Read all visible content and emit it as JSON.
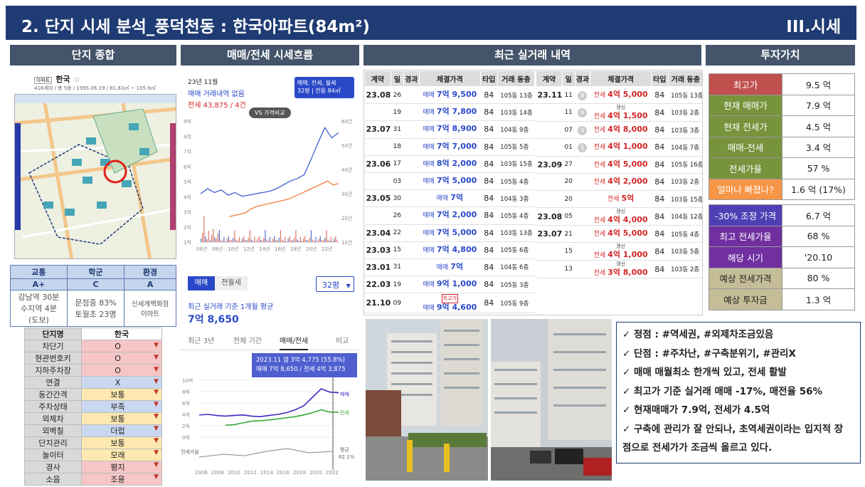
{
  "header": {
    "title": "2. 단지 시세 분석_풍덕천동 : 한국아파트(84m²)",
    "section": "III.시세"
  },
  "panels": {
    "complex": "단지 종합",
    "trend": "매매/전세 시세흐름",
    "deals": "최근 실거래 내역",
    "invest": "투자가치"
  },
  "map": {
    "name": "한국",
    "info": "416세대 / 총 5동 / 1995.06.19 / 81.63㎡ ~ 105.9㎡",
    "tag": "아파트"
  },
  "grades": {
    "headers": [
      "교통",
      "학군",
      "환경"
    ],
    "values": [
      "A+",
      "C",
      "A"
    ],
    "details": [
      "강남역 30분\n수지역 4분\n(도보)",
      "문정중 83%\n토월초 23명",
      "신세계백화점\n이마트"
    ]
  },
  "attributes": {
    "col1": "단지명",
    "col2": "한국",
    "rows": [
      {
        "label": "차단기",
        "value": "O",
        "tone": "red"
      },
      {
        "label": "현관번호키",
        "value": "O",
        "tone": "red"
      },
      {
        "label": "지하주차장",
        "value": "O",
        "tone": "red"
      },
      {
        "label": "연결",
        "value": "X",
        "tone": "blue"
      },
      {
        "label": "동간간격",
        "value": "보통",
        "tone": "yel"
      },
      {
        "label": "주차상태",
        "value": "부족",
        "tone": "blue"
      },
      {
        "label": "외제차",
        "value": "보통",
        "tone": "yel"
      },
      {
        "label": "외벽칠",
        "value": "더럽",
        "tone": "blue"
      },
      {
        "label": "단지관리",
        "value": "보통",
        "tone": "yel"
      },
      {
        "label": "놀이터",
        "value": "모래",
        "tone": "yel"
      },
      {
        "label": "경사",
        "value": "평지",
        "tone": "red"
      },
      {
        "label": "소음",
        "value": "조용",
        "tone": "red"
      }
    ]
  },
  "trend_top": {
    "month": "23년 11월",
    "sale_line": "매매 거래내역 없음",
    "lease_line": "전세 43,875 / 4건",
    "filter_line1": "매매, 전세, 월세",
    "filter_line2": "32평 | 전용 84㎡",
    "compare": "VS 가격비교",
    "tabs": [
      "매매",
      "전월세"
    ],
    "size_select": "32평",
    "avg_label": "최근 실거래 기준 1개월 평균",
    "avg_value": "7억 8,650",
    "period_tabs": [
      "최근 3년",
      "전체 기간",
      "매매/전세",
      "비교"
    ],
    "tooltip1": "2023.11  갭 3억 4,775 (55.8%)",
    "tooltip2": "매매 7억 8,650 / 전세 4억 3,875",
    "y_left": [
      "9억",
      "8억",
      "7억",
      "6억",
      "5억",
      "4억",
      "3억",
      "2억",
      "1억"
    ],
    "y_right": [
      "60건",
      "50건",
      "40건",
      "30건",
      "20건",
      "10건"
    ],
    "x_axis": [
      "06년",
      "08년",
      "10년",
      "12년",
      "14년",
      "16년",
      "18년",
      "20년",
      "22년"
    ],
    "y2_left": [
      "10억",
      "8억",
      "6억",
      "4억",
      "2억",
      "0억"
    ],
    "x2_axis": [
      "2006",
      "2008",
      "2010",
      "2012",
      "2014",
      "2016",
      "2018",
      "2020",
      "2022"
    ],
    "label_sale": "매매",
    "label_lease": "전세",
    "label_rate": "전세가율",
    "label_avg": "평균",
    "label_avg_val": "62.1%"
  },
  "deals": {
    "headers": [
      "계약",
      "일",
      "경과",
      "체결가격",
      "타입",
      "거래 동층"
    ],
    "left": [
      {
        "ym": "23.08",
        "d": "26",
        "kind": "매매",
        "price": "7억 9,500",
        "t": "84",
        "f": "105동 13층"
      },
      {
        "ym": "",
        "d": "19",
        "kind": "매매",
        "price": "7억 7,800",
        "t": "84",
        "f": "103동 14층"
      },
      {
        "ym": "23.07",
        "d": "31",
        "kind": "매매",
        "price": "7억 8,900",
        "t": "84",
        "f": "104동 9층"
      },
      {
        "ym": "",
        "d": "18",
        "kind": "매매",
        "price": "7억 7,000",
        "t": "84",
        "f": "105동 5층"
      },
      {
        "ym": "23.06",
        "d": "17",
        "kind": "매매",
        "price": "8억 2,000",
        "t": "84",
        "f": "103동 15층"
      },
      {
        "ym": "",
        "d": "03",
        "kind": "매매",
        "price": "7억 5,000",
        "t": "84",
        "f": "105동 4층"
      },
      {
        "ym": "23.05",
        "d": "30",
        "kind": "매매",
        "price": "7억",
        "t": "84",
        "f": "104동 3층"
      },
      {
        "ym": "",
        "d": "26",
        "kind": "매매",
        "price": "7억 2,000",
        "t": "84",
        "f": "105동 4층"
      },
      {
        "ym": "23.04",
        "d": "22",
        "kind": "매매",
        "price": "7억 5,000",
        "t": "84",
        "f": "103동 13층"
      },
      {
        "ym": "23.03",
        "d": "15",
        "kind": "매매",
        "price": "7억 4,800",
        "t": "84",
        "f": "105동 6층"
      },
      {
        "ym": "23.01",
        "d": "31",
        "kind": "매매",
        "price": "7억",
        "t": "84",
        "f": "104동 6층"
      },
      {
        "ym": "22.03",
        "d": "19",
        "kind": "매매",
        "price": "9억 1,000",
        "t": "84",
        "f": "105동 3층"
      },
      {
        "ym": "21.10",
        "d": "09",
        "kind": "매매",
        "price": "9억 4,600",
        "t": "84",
        "f": "105동 9층",
        "badge": "최고가"
      }
    ],
    "right": [
      {
        "ym": "23.11",
        "d": "11",
        "g": "8",
        "tag": "",
        "kind": "전세",
        "price": "4억 5,000",
        "t": "84",
        "f": "105동 13층"
      },
      {
        "ym": "",
        "d": "11",
        "g": "9",
        "tag": "갱신",
        "kind": "전세",
        "price": "4억 1,500",
        "t": "84",
        "f": "103동 2층"
      },
      {
        "ym": "",
        "d": "07",
        "g": "9",
        "tag": "",
        "kind": "전세",
        "price": "4억 8,000",
        "t": "84",
        "f": "103동 3층"
      },
      {
        "ym": "",
        "d": "01",
        "g": "5",
        "tag": "",
        "kind": "전세",
        "price": "4억 1,000",
        "t": "84",
        "f": "104동 7층"
      },
      {
        "ym": "23.09",
        "d": "27",
        "g": "",
        "tag": "",
        "kind": "전세",
        "price": "4억 5,000",
        "t": "84",
        "f": "105동 16층"
      },
      {
        "ym": "",
        "d": "20",
        "g": "",
        "tag": "",
        "kind": "전세",
        "price": "4억 2,000",
        "t": "84",
        "f": "103동 2층"
      },
      {
        "ym": "",
        "d": "20",
        "g": "",
        "tag": "",
        "kind": "전세",
        "price": "5억",
        "t": "84",
        "f": "103동 15층"
      },
      {
        "ym": "23.08",
        "d": "05",
        "g": "",
        "tag": "갱신",
        "kind": "전세",
        "price": "4억 4,000",
        "t": "84",
        "f": "104동 12층"
      },
      {
        "ym": "23.07",
        "d": "21",
        "g": "",
        "tag": "",
        "kind": "전세",
        "price": "4억 5,000",
        "t": "84",
        "f": "105동 4층"
      },
      {
        "ym": "",
        "d": "15",
        "g": "",
        "tag": "갱신",
        "kind": "전세",
        "price": "4억 1,000",
        "t": "84",
        "f": "103동 5층"
      },
      {
        "ym": "",
        "d": "13",
        "g": "",
        "tag": "갱신",
        "kind": "전세",
        "price": "3억 8,000",
        "t": "84",
        "f": "103동 2층"
      }
    ]
  },
  "invest": {
    "rows1": [
      {
        "k": "최고가",
        "v": "9.5 억",
        "c": "#c0504d"
      },
      {
        "k": "현재 매매가",
        "v": "7.9 억",
        "c": "#77933c"
      },
      {
        "k": "현재 전세가",
        "v": "4.5 억",
        "c": "#77933c"
      },
      {
        "k": "매매-전세",
        "v": "3.4 억",
        "c": "#77933c"
      },
      {
        "k": "전세가율",
        "v": "57 %",
        "c": "#77933c"
      },
      {
        "k": "얼마나 빠졌나?",
        "v": "1.6 억 (17%)",
        "c": "#f79646"
      }
    ],
    "rows2": [
      {
        "k": "-30% 조정 가격",
        "v": "6.7 억",
        "c": "#4f3fb5"
      },
      {
        "k": "최고 전세가율",
        "v": "68 %",
        "c": "#7030a0"
      },
      {
        "k": "해당 시기",
        "v": "'20.10",
        "c": "#7030a0"
      },
      {
        "k": "예상 전세가격",
        "v": "80 %",
        "c": "#c4bd97",
        "dark": true
      },
      {
        "k": "예상 투자금",
        "v": "1.3 억",
        "c": "#c4bd97",
        "dark": true
      }
    ]
  },
  "summary": [
    "✓ 정점 : #역세권, #외제차조금있음",
    "✓ 단점 : #주차난, #구축분위기, #관리X",
    "✓ 매매 매월최소 한개씩 있고, 전세 활발",
    "✓ 최고가 기준 실거래 매매 -17%, 매전율 56%",
    "✓ 현재매매가 7.9억, 전세가 4.5억",
    "✓ 구축에 관리가 잘 안되나, 초역세권이라는 입지적 장",
    "    점으로 전세가가 조금씩 올르고 있다."
  ],
  "colors": {
    "navy": "#1f3b73",
    "slate": "#44546a",
    "sale": "#2a49c8",
    "lease": "#d42525"
  }
}
